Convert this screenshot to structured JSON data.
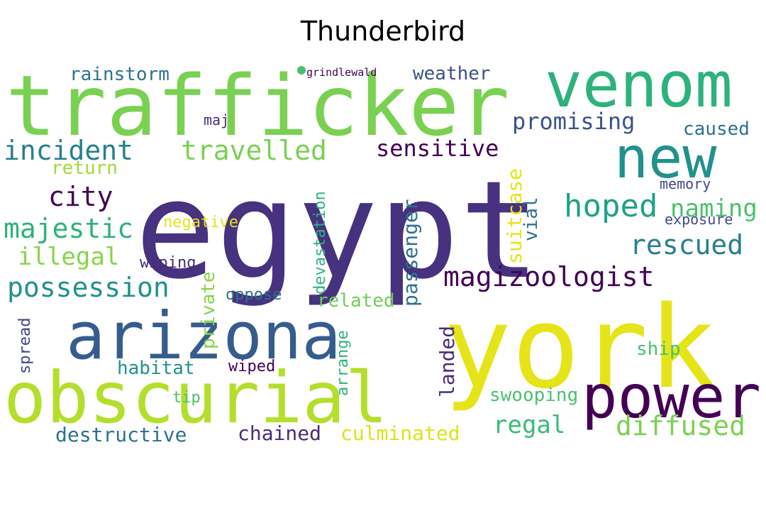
{
  "title": "Thunderbird",
  "words": [
    {
      "text": "trafficker",
      "color": "#7ad151"
    },
    {
      "text": "venom",
      "color": "#2db27d"
    },
    {
      "text": "egypt",
      "color": "#46327e"
    },
    {
      "text": "new",
      "color": "#21918c"
    },
    {
      "text": "york",
      "color": "#e5e419"
    },
    {
      "text": "arizona",
      "color": "#365c8d"
    },
    {
      "text": "obscurial",
      "color": "#b4de2c"
    },
    {
      "text": "power",
      "color": "#440154"
    },
    {
      "text": "incident",
      "color": "#277f8e"
    },
    {
      "text": "travelled",
      "color": "#7ad151"
    },
    {
      "text": "magizoologist",
      "color": "#440154"
    },
    {
      "text": "possession",
      "color": "#21918c"
    },
    {
      "text": "city",
      "color": "#440154"
    },
    {
      "text": "hoped",
      "color": "#1fa187"
    },
    {
      "text": "majestic",
      "color": "#2db27d"
    },
    {
      "text": "illegal",
      "color": "#86d549"
    },
    {
      "text": "rescued",
      "color": "#277f8e"
    },
    {
      "text": "sensitive",
      "color": "#440154"
    },
    {
      "text": "naming",
      "color": "#4ac16d"
    },
    {
      "text": "diffused",
      "color": "#7ad151"
    },
    {
      "text": "rainstorm",
      "color": "#2c728e"
    },
    {
      "text": "weather",
      "color": "#3b528b"
    },
    {
      "text": "promising",
      "color": "#3b528b"
    },
    {
      "text": "caused",
      "color": "#2c728e"
    },
    {
      "text": "return",
      "color": "#a0da39"
    },
    {
      "text": "suitcase",
      "color": "#e5e419"
    },
    {
      "text": "passenger",
      "color": "#2c728e"
    },
    {
      "text": "vial",
      "color": "#2c728e"
    },
    {
      "text": "devastation",
      "color": "#2db27d"
    },
    {
      "text": "private",
      "color": "#86d549"
    },
    {
      "text": "arrange",
      "color": "#2db27d"
    },
    {
      "text": "landed",
      "color": "#472c7a"
    },
    {
      "text": "spread",
      "color": "#414487"
    },
    {
      "text": "habitat",
      "color": "#21918c"
    },
    {
      "text": "wiped",
      "color": "#440154"
    },
    {
      "text": "tip",
      "color": "#4ac16d"
    },
    {
      "text": "destructive",
      "color": "#2c728e"
    },
    {
      "text": "chained",
      "color": "#472c7a"
    },
    {
      "text": "culminated",
      "color": "#dde318"
    },
    {
      "text": "regal",
      "color": "#3bbb75"
    },
    {
      "text": "swooping",
      "color": "#4ac16d"
    },
    {
      "text": "ship",
      "color": "#4ac16d"
    },
    {
      "text": "related",
      "color": "#6ece58"
    },
    {
      "text": "oppose",
      "color": "#2c728e"
    },
    {
      "text": "wiping",
      "color": "#472c7a"
    },
    {
      "text": "negative",
      "color": "#e5e419"
    },
    {
      "text": "memory",
      "color": "#3e4989"
    },
    {
      "text": "exposure",
      "color": "#3e4989"
    },
    {
      "text": "maj",
      "color": "#472c7a"
    },
    {
      "text": "grindlewald",
      "color": "#440154"
    }
  ]
}
